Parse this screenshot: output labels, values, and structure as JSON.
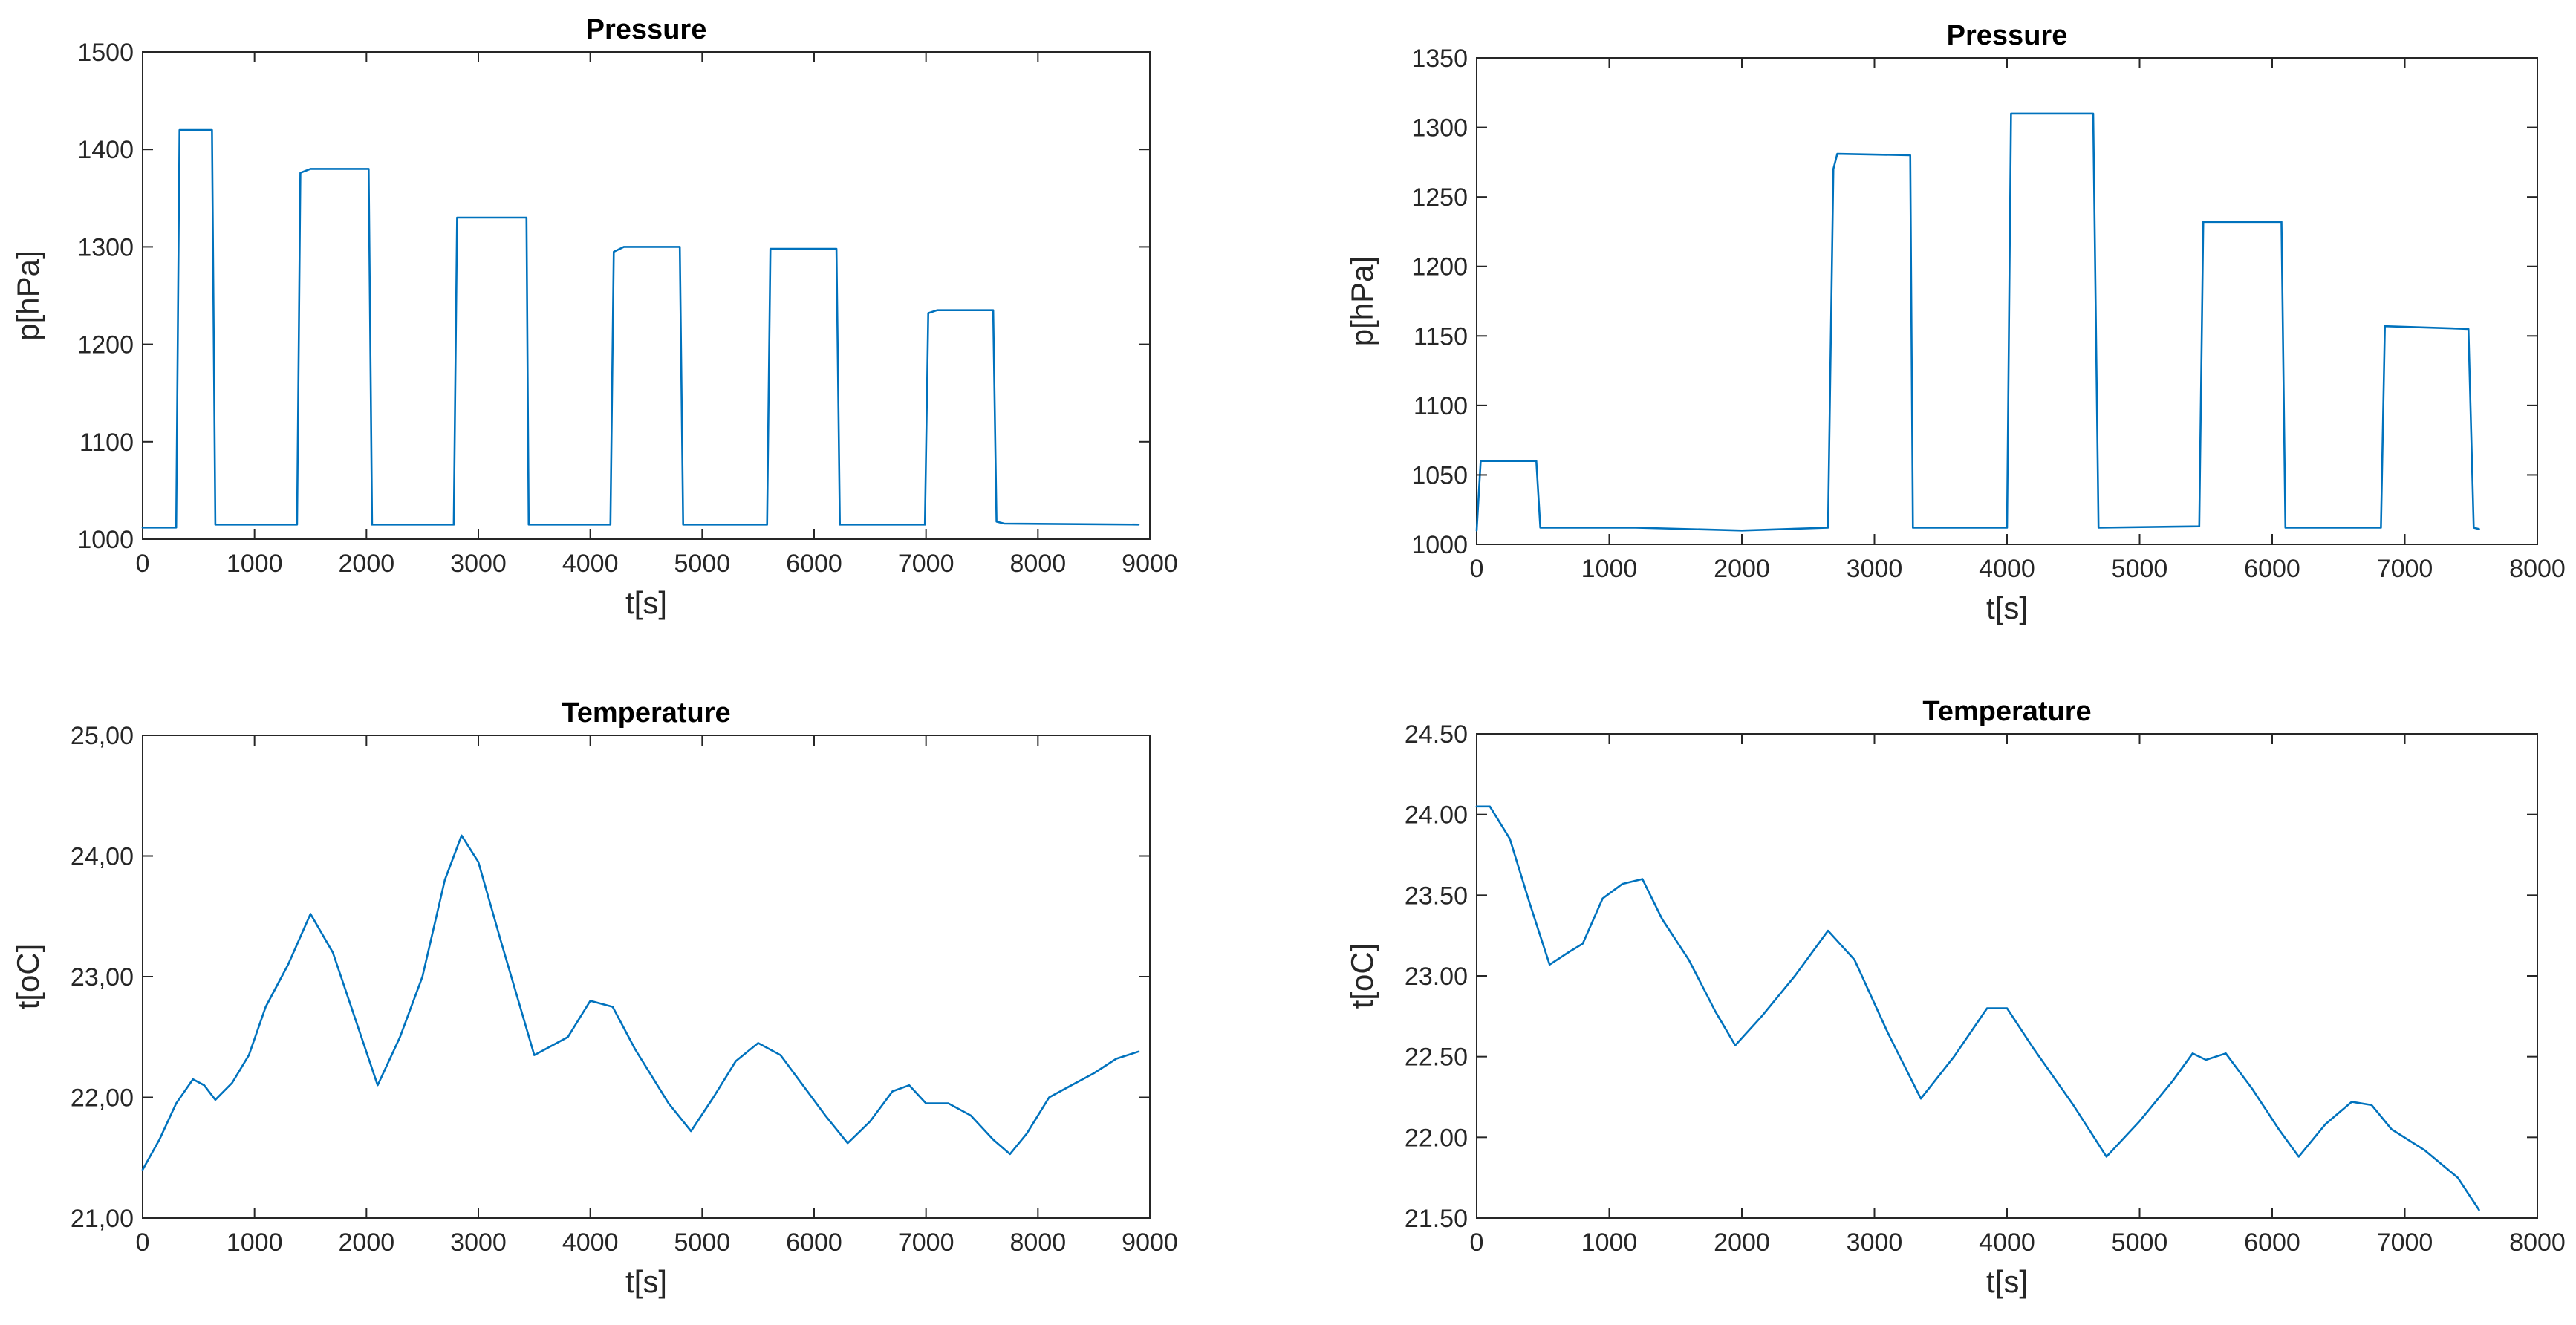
{
  "colors": {
    "series": "#0072BD",
    "axis": "#262626",
    "background": "#ffffff"
  },
  "chart_data": [
    {
      "type": "line",
      "title": "Pressure",
      "xlabel": "t[s]",
      "ylabel": "p[hPa]",
      "xlim": [
        0,
        9000
      ],
      "ylim": [
        1000,
        1500
      ],
      "xticks": [
        0,
        1000,
        2000,
        3000,
        4000,
        5000,
        6000,
        7000,
        8000,
        9000
      ],
      "yticks": [
        1000,
        1100,
        1200,
        1300,
        1400,
        1500
      ],
      "xtick_labels": [
        "0",
        "1000",
        "2000",
        "3000",
        "4000",
        "5000",
        "6000",
        "7000",
        "8000",
        "9000"
      ],
      "ytick_labels": [
        "1000",
        "1100",
        "1200",
        "1300",
        "1400",
        "1500"
      ],
      "grid": false,
      "series": [
        {
          "name": "pressure",
          "x": [
            0,
            300,
            330,
            400,
            620,
            650,
            1380,
            1410,
            1500,
            2020,
            2050,
            2780,
            2810,
            3430,
            3450,
            4180,
            4210,
            4300,
            4800,
            4830,
            5580,
            5610,
            6200,
            6230,
            6990,
            7020,
            7100,
            7600,
            7630,
            7700,
            8900
          ],
          "y": [
            1012,
            1012,
            1420,
            1420,
            1420,
            1015,
            1015,
            1376,
            1380,
            1380,
            1015,
            1015,
            1330,
            1330,
            1015,
            1015,
            1295,
            1300,
            1300,
            1015,
            1015,
            1298,
            1298,
            1015,
            1015,
            1232,
            1235,
            1235,
            1018,
            1016,
            1015
          ]
        }
      ]
    },
    {
      "type": "line",
      "title": "Pressure",
      "xlabel": "t[s]",
      "ylabel": "p[hPa]",
      "xlim": [
        0,
        8000
      ],
      "ylim": [
        1000,
        1350
      ],
      "xticks": [
        0,
        1000,
        2000,
        3000,
        4000,
        5000,
        6000,
        7000,
        8000
      ],
      "yticks": [
        1000,
        1050,
        1100,
        1150,
        1200,
        1250,
        1300,
        1350
      ],
      "xtick_labels": [
        "0",
        "1000",
        "2000",
        "3000",
        "4000",
        "5000",
        "6000",
        "7000",
        "8000"
      ],
      "ytick_labels": [
        "1000",
        "1050",
        "1100",
        "1150",
        "1200",
        "1250",
        "1300",
        "1350"
      ],
      "grid": false,
      "series": [
        {
          "name": "pressure",
          "x": [
            0,
            30,
            60,
            450,
            480,
            1200,
            2000,
            2650,
            2690,
            2720,
            3270,
            3290,
            4000,
            4030,
            4650,
            4690,
            5450,
            5480,
            6070,
            6100,
            6820,
            6850,
            7480,
            7520,
            7560
          ],
          "y": [
            1010,
            1060,
            1060,
            1060,
            1012,
            1012,
            1010,
            1012,
            1270,
            1281,
            1280,
            1012,
            1012,
            1310,
            1310,
            1012,
            1013,
            1232,
            1232,
            1012,
            1012,
            1157,
            1155,
            1012,
            1011
          ]
        }
      ]
    },
    {
      "type": "line",
      "title": "Temperature",
      "xlabel": "t[s]",
      "ylabel": "t[oC]",
      "xlim": [
        0,
        9000
      ],
      "ylim": [
        21,
        25
      ],
      "xticks": [
        0,
        1000,
        2000,
        3000,
        4000,
        5000,
        6000,
        7000,
        8000,
        9000
      ],
      "yticks": [
        21,
        22,
        23,
        24,
        25
      ],
      "xtick_labels": [
        "0",
        "1000",
        "2000",
        "3000",
        "4000",
        "5000",
        "6000",
        "7000",
        "8000",
        "9000"
      ],
      "ytick_labels": [
        "21,00",
        "22,00",
        "23,00",
        "24,00",
        "25,00"
      ],
      "grid": false,
      "series": [
        {
          "name": "temperature",
          "x": [
            0,
            150,
            300,
            450,
            550,
            650,
            800,
            950,
            1100,
            1300,
            1500,
            1700,
            1900,
            2100,
            2300,
            2500,
            2700,
            2850,
            3000,
            3200,
            3500,
            3800,
            4000,
            4200,
            4400,
            4700,
            4900,
            5100,
            5300,
            5500,
            5700,
            5900,
            6100,
            6300,
            6500,
            6700,
            6850,
            7000,
            7200,
            7400,
            7600,
            7750,
            7900,
            8100,
            8300,
            8500,
            8700,
            8900
          ],
          "y": [
            21.4,
            21.65,
            21.95,
            22.15,
            22.1,
            21.98,
            22.12,
            22.35,
            22.75,
            23.1,
            23.52,
            23.2,
            22.65,
            22.1,
            22.5,
            23.0,
            23.8,
            24.17,
            23.95,
            23.3,
            22.35,
            22.5,
            22.8,
            22.75,
            22.4,
            21.95,
            21.72,
            22.0,
            22.3,
            22.45,
            22.35,
            22.1,
            21.85,
            21.62,
            21.8,
            22.05,
            22.1,
            21.95,
            21.95,
            21.85,
            21.65,
            21.53,
            21.7,
            22.0,
            22.1,
            22.2,
            22.32,
            22.38
          ]
        }
      ]
    },
    {
      "type": "line",
      "title": "Temperature",
      "xlabel": "t[s]",
      "ylabel": "t[oC]",
      "xlim": [
        0,
        8000
      ],
      "ylim": [
        21.5,
        24.5
      ],
      "xticks": [
        0,
        1000,
        2000,
        3000,
        4000,
        5000,
        6000,
        7000,
        8000
      ],
      "yticks": [
        21.5,
        22,
        22.5,
        23,
        23.5,
        24,
        24.5
      ],
      "xtick_labels": [
        "0",
        "1000",
        "2000",
        "3000",
        "4000",
        "5000",
        "6000",
        "7000",
        "8000"
      ],
      "ytick_labels": [
        "21.50",
        "22.00",
        "22.50",
        "23.00",
        "23.50",
        "24.00",
        "24.50"
      ],
      "grid": false,
      "series": [
        {
          "name": "temperature",
          "x": [
            0,
            100,
            250,
            400,
            550,
            700,
            800,
            950,
            1100,
            1250,
            1400,
            1600,
            1800,
            1950,
            2150,
            2400,
            2650,
            2850,
            3100,
            3350,
            3600,
            3850,
            4000,
            4200,
            4500,
            4750,
            5000,
            5250,
            5400,
            5500,
            5650,
            5850,
            6050,
            6200,
            6400,
            6600,
            6750,
            6900,
            7150,
            7400,
            7560
          ],
          "y": [
            24.05,
            24.05,
            23.85,
            23.45,
            23.07,
            23.15,
            23.2,
            23.48,
            23.57,
            23.6,
            23.35,
            23.1,
            22.78,
            22.57,
            22.75,
            23.0,
            23.28,
            23.1,
            22.65,
            22.24,
            22.5,
            22.8,
            22.8,
            22.55,
            22.2,
            21.88,
            22.1,
            22.35,
            22.52,
            22.48,
            22.52,
            22.3,
            22.05,
            21.88,
            22.08,
            22.22,
            22.2,
            22.05,
            21.92,
            21.75,
            21.55
          ]
        }
      ]
    }
  ]
}
